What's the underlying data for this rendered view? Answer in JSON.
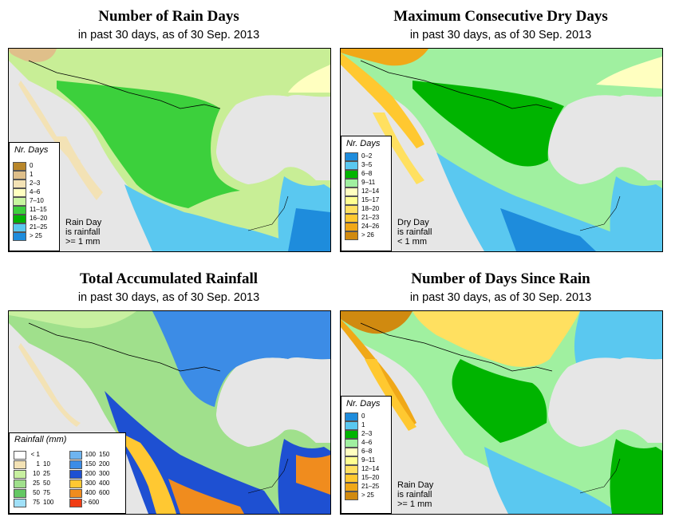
{
  "panels": [
    {
      "id": "rain-days",
      "title": "Number of Rain Days",
      "subtitle": "in past 30 days, as of  30 Sep. 2013",
      "legend_title": "Nr. Days",
      "legend": [
        {
          "label": "0",
          "color": "#b8862a"
        },
        {
          "label": "1",
          "color": "#dfbf8a"
        },
        {
          "label": "2–3",
          "color": "#f3e2b5"
        },
        {
          "label": "4–6",
          "color": "#ffffc0"
        },
        {
          "label": "7–10",
          "color": "#c8f5a0"
        },
        {
          "label": "11–15",
          "color": "#3cd03c"
        },
        {
          "label": "16–20",
          "color": "#00b400"
        },
        {
          "label": "21–25",
          "color": "#5ac8f0"
        },
        {
          "label": "> 25",
          "color": "#1e8cdc"
        }
      ],
      "note": "Rain Day\nis rainfall\n>= 1 mm"
    },
    {
      "id": "dry-days",
      "title": "Maximum Consecutive Dry Days",
      "subtitle": "in past 30 days, as of  30 Sep. 2013",
      "legend_title": "Nr. Days",
      "legend": [
        {
          "label": "0–2",
          "color": "#1e8cdc"
        },
        {
          "label": "3–5",
          "color": "#5ac8f0"
        },
        {
          "label": "6–8",
          "color": "#00b400"
        },
        {
          "label": "9–11",
          "color": "#a0f0a0"
        },
        {
          "label": "12–14",
          "color": "#ffffc0"
        },
        {
          "label": "15–17",
          "color": "#ffff90"
        },
        {
          "label": "18–20",
          "color": "#ffe060"
        },
        {
          "label": "21–23",
          "color": "#ffc830"
        },
        {
          "label": "24–26",
          "color": "#f0a818"
        },
        {
          "label": "> 26",
          "color": "#d08a10"
        }
      ],
      "note": "Dry Day\nis rainfall\n< 1 mm"
    },
    {
      "id": "total-rainfall",
      "title": "Total Accumulated Rainfall",
      "subtitle": "in past 30 days, as of  30 Sep. 2013",
      "legend_title": "Rainfall (mm)",
      "legend_left": [
        {
          "a": "< 1",
          "b": "",
          "color": "#ffffff"
        },
        {
          "a": "1",
          "b": "10",
          "color": "#f3e2b5"
        },
        {
          "a": "10",
          "b": "25",
          "color": "#c8f0a0"
        },
        {
          "a": "25",
          "b": "50",
          "color": "#a0e08c"
        },
        {
          "a": "50",
          "b": "75",
          "color": "#64c864"
        },
        {
          "a": "75",
          "b": "100",
          "color": "#a0e0f8"
        }
      ],
      "legend_right": [
        {
          "a": "100",
          "b": "150",
          "color": "#6eb4f0"
        },
        {
          "a": "150",
          "b": "200",
          "color": "#3c8ce6"
        },
        {
          "a": "200",
          "b": "300",
          "color": "#1e50d2"
        },
        {
          "a": "300",
          "b": "400",
          "color": "#ffc832"
        },
        {
          "a": "400",
          "b": "600",
          "color": "#f08c1e"
        },
        {
          "a": "> 600",
          "b": "",
          "color": "#f03c14"
        }
      ]
    },
    {
      "id": "days-since-rain",
      "title": "Number of Days Since Rain",
      "subtitle": "in past 30 days, as of  30 Sep. 2013",
      "legend_title": "Nr. Days",
      "legend": [
        {
          "label": "0",
          "color": "#1e8cdc"
        },
        {
          "label": "1",
          "color": "#5ac8f0"
        },
        {
          "label": "2–3",
          "color": "#00b400"
        },
        {
          "label": "4–6",
          "color": "#a0f0a0"
        },
        {
          "label": "6–8",
          "color": "#ffffc0"
        },
        {
          "label": "9–11",
          "color": "#ffff90"
        },
        {
          "label": "12–14",
          "color": "#ffe060"
        },
        {
          "label": "15–20",
          "color": "#ffc830"
        },
        {
          "label": "21–25",
          "color": "#f0a818"
        },
        {
          "label": "> 25",
          "color": "#d08a10"
        }
      ],
      "note": "Rain Day\nis rainfall\n>= 1 mm"
    }
  ]
}
